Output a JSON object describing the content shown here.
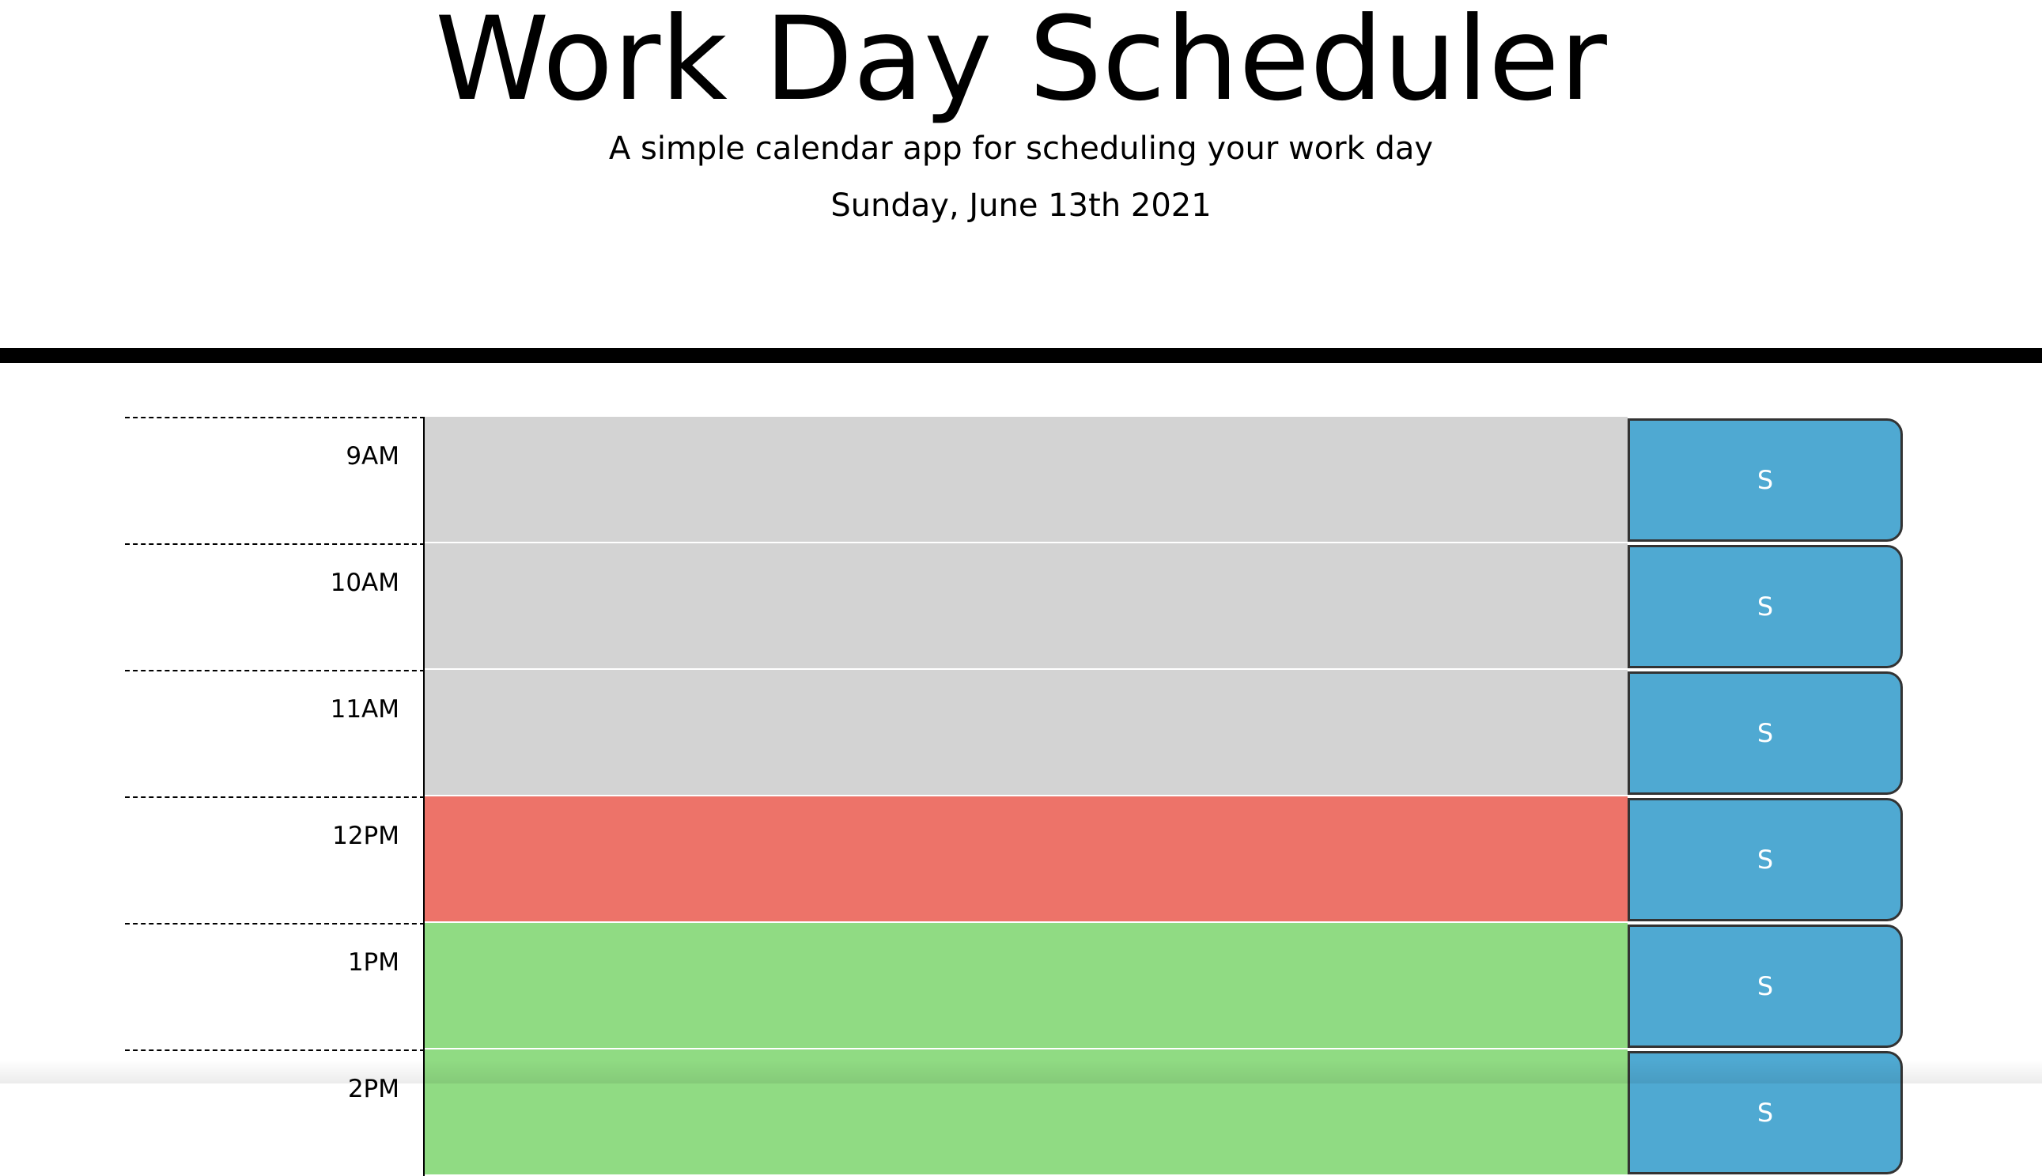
{
  "header": {
    "title": "Work Day Scheduler",
    "subtitle": "A simple calendar app for scheduling your work day",
    "date": "Sunday, June 13th 2021"
  },
  "rows": [
    {
      "hour": "9AM",
      "button": "S",
      "color": "#d3d3d3"
    },
    {
      "hour": "10AM",
      "button": "S",
      "color": "#d3d3d3"
    },
    {
      "hour": "11AM",
      "button": "S",
      "color": "#d3d3d3"
    },
    {
      "hour": "12PM",
      "button": "S",
      "color": "#ed7369"
    },
    {
      "hour": "1PM",
      "button": "S",
      "color": "#90db83"
    },
    {
      "hour": "2PM",
      "button": "S",
      "color": "#90db83"
    }
  ]
}
